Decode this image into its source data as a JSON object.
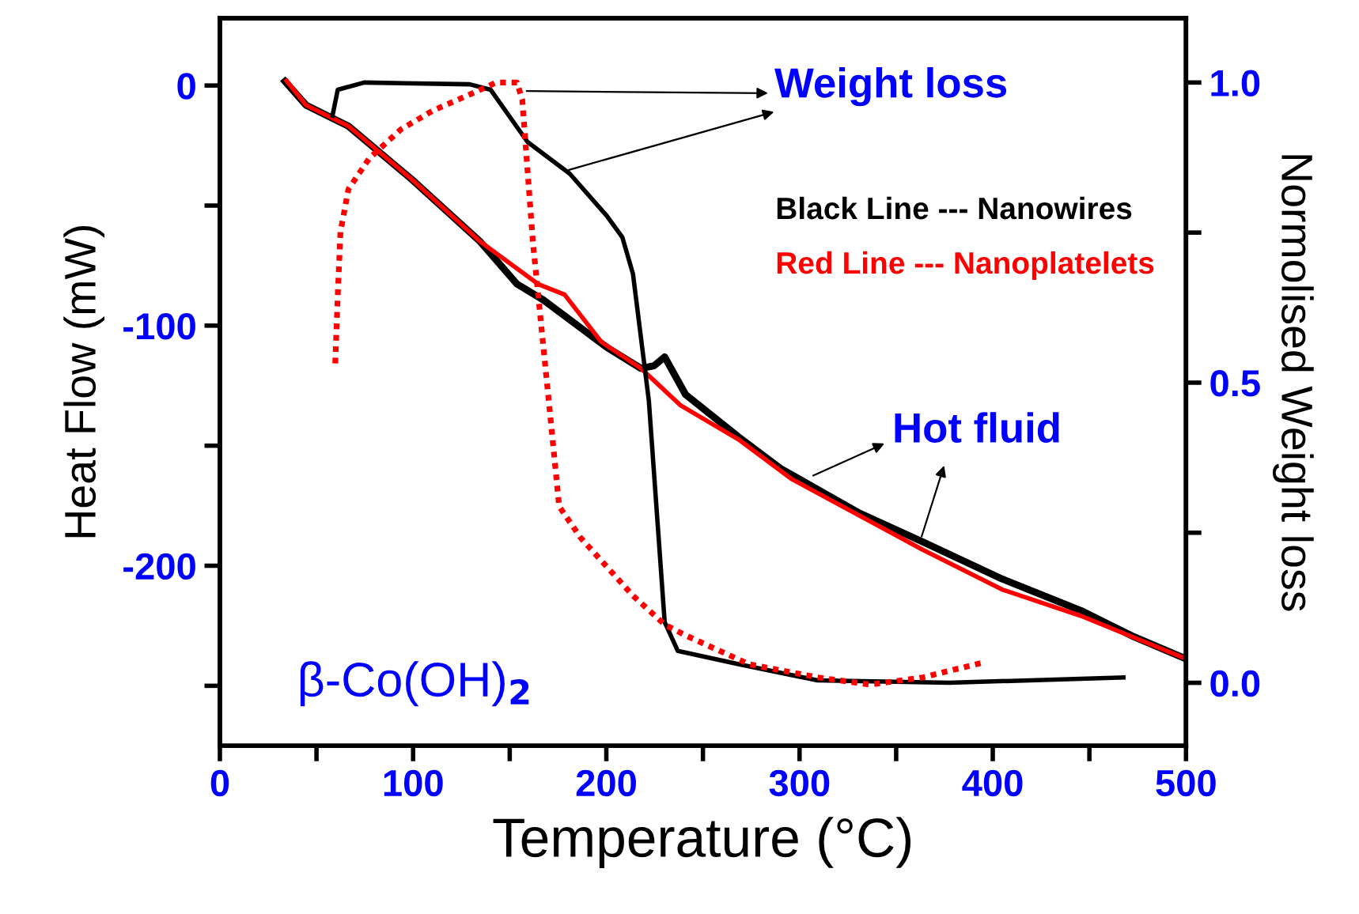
{
  "chart_data": {
    "type": "line",
    "xlabel": "Temperature (°C)",
    "ylabel": "Heat Flow (mW)",
    "y2label": "Normolised Weight loss",
    "series": [
      {
        "color": "#000000",
        "x": [
          33.7,
          44.6,
          66.5,
          99.2,
          134.7,
          153.8,
          167.4,
          200.2,
          217.9,
          224.7,
          230.2,
          241,
          268.4,
          290.2,
          331.1,
          363.9,
          404.8,
          445.7,
          473.1,
          498.9
        ],
        "values": [
          1.7,
          -8.2,
          -16.9,
          -39,
          -65,
          -82.7,
          -89.3,
          -109,
          -117.8,
          -116.7,
          -113,
          -128.7,
          -146.3,
          -159.5,
          -178.1,
          -190.1,
          -205.5,
          -218.7,
          -229.6,
          -238.4
        ]
      },
      {
        "color": "#ff0000",
        "x": [
          34.5,
          44.6,
          66.5,
          99.2,
          134.7,
          164.7,
          178.4,
          197.4,
          217.9,
          238.4,
          268.4,
          295.7,
          363.9,
          404.8,
          445.7,
          498.9
        ],
        "values": [
          2,
          -8.2,
          -16.9,
          -39,
          -65,
          -82.7,
          -87.1,
          -106.8,
          -117.8,
          -133.2,
          -147.4,
          -163.8,
          -193.4,
          -209.9,
          -220.9,
          -238.4
        ]
      },
      {
        "color": "#000000",
        "axis": "y2",
        "x": [
          58.3,
          61,
          74.7,
          129.3,
          140.1,
          159.2,
          181.1,
          200.2,
          208.3,
          213.8,
          222,
          230.2,
          237,
          268.4,
          309.3,
          377.5,
          467.6
        ],
        "values": [
          0.945,
          0.988,
          1.0,
          0.997,
          0.988,
          0.901,
          0.848,
          0.778,
          0.742,
          0.681,
          0.47,
          0.101,
          0.053,
          0.031,
          0.004,
          0.0,
          0.009
        ]
      },
      {
        "color": "#ff0000",
        "axis": "y2",
        "line_style": "dotted",
        "x": [
          59.7,
          61,
          62.4,
          66.5,
          77.4,
          93.7,
          110.1,
          129.3,
          142.9,
          153.8,
          156.5,
          162,
          170.2,
          175.6,
          186.6,
          213.8,
          230.2,
          241,
          273.8,
          309.3,
          336.6,
          363.9,
          393.9
        ],
        "values": [
          0.532,
          0.646,
          0.751,
          0.822,
          0.874,
          0.922,
          0.953,
          0.98,
          1.0,
          1.0,
          0.971,
          0.734,
          0.47,
          0.294,
          0.242,
          0.145,
          0.097,
          0.079,
          0.031,
          0.009,
          -0.003,
          0.009,
          0.033
        ]
      }
    ],
    "xlim": [
      0,
      500
    ],
    "xticks": [
      0,
      {
        "value": 50,
        "label": null
      },
      100,
      {
        "value": 150,
        "label": null
      },
      200,
      {
        "value": 250,
        "label": null
      },
      300,
      {
        "value": 350,
        "label": null
      },
      400,
      {
        "value": 450,
        "label": null
      },
      500
    ],
    "ylim": [
      -275,
      28
    ],
    "yticks": [
      {
        "value": -250,
        "label": null
      },
      -200,
      {
        "value": -150,
        "label": null
      },
      -100,
      {
        "value": -50,
        "label": null
      },
      0
    ],
    "y2lim": [
      -0.105,
      1.107
    ],
    "y2ticks": [
      {
        "value": 0,
        "label": "0.0"
      },
      {
        "value": 0.25,
        "label": null
      },
      {
        "value": 0.5,
        "label": "0.5"
      },
      {
        "value": 0.75,
        "label": null
      },
      {
        "value": 1,
        "label": "1.0"
      }
    ],
    "annotations": [
      "Weight loss",
      "Hot fluid",
      "Black Line --- Nanowires",
      "Red Line --- Nanoplatelets",
      "β-Co(OH)$_{2}$"
    ],
    "line_style": "solid",
    "marker": "none",
    "grid": false,
    "legend": false
  }
}
